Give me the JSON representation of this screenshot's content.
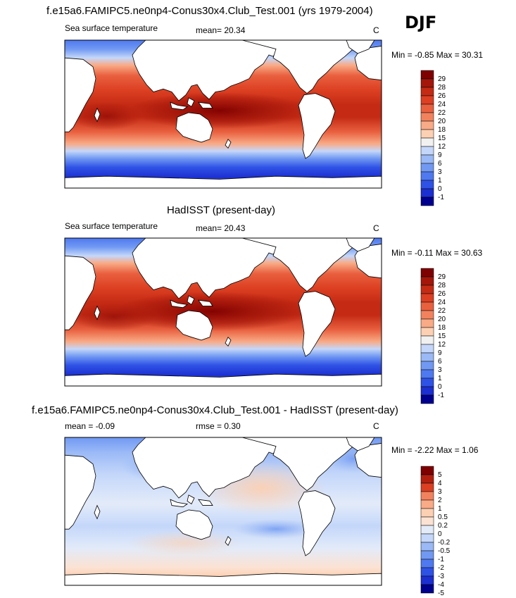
{
  "season": "DJF",
  "colors": {
    "sst": [
      "#00008f",
      "#1c2fd1",
      "#2f52e6",
      "#4f79f0",
      "#7199f3",
      "#9ab9f6",
      "#c4d7fa",
      "#f1f1f1",
      "#fcd0b3",
      "#f9aa86",
      "#f2825d",
      "#e9603f",
      "#dc3f22",
      "#c42a14",
      "#a4160a",
      "#7f0000"
    ],
    "diff": [
      "#00008f",
      "#1c2fd1",
      "#2f52e6",
      "#4f79f0",
      "#7199f3",
      "#9ab9f6",
      "#c4d7fa",
      "#e3ebf9",
      "#fbe2d2",
      "#fcd0b3",
      "#f9aa86",
      "#f2825d",
      "#dc3f22",
      "#b21f0f",
      "#7f0000"
    ]
  },
  "panels": [
    {
      "title": "f.e15a6.FAMIPC5.ne0np4-Conus30x4.Club_Test.001 (yrs 1979-2004)",
      "left_label": "Sea surface temperature",
      "mid_label": "mean=  20.34",
      "units": "C",
      "minmax": "Min =  -0.85 Max =  30.31"
    },
    {
      "title": "HadISST (present-day)",
      "left_label": "Sea surface temperature",
      "mid_label": "mean=  20.43",
      "units": "C",
      "minmax": "Min =  -0.11 Max =  30.63"
    },
    {
      "title": "f.e15a6.FAMIPC5.ne0np4-Conus30x4.Club_Test.001 - HadISST (present-day)",
      "left_label": "mean =  -0.09",
      "mid_label": "rmse =   0.30",
      "units": "C",
      "minmax": "Min =  -2.22 Max =   1.06"
    }
  ],
  "chart_data": [
    {
      "type": "heatmap",
      "title": "f.e15a6.FAMIPC5.ne0np4-Conus30x4.Club_Test.001 (yrs 1979-2004)",
      "variable": "Sea surface temperature",
      "units": "C",
      "mean": 20.34,
      "min": -0.85,
      "max": 30.31,
      "colorbar_levels": [
        "29",
        "28",
        "26",
        "24",
        "22",
        "20",
        "18",
        "15",
        "12",
        "9",
        "6",
        "3",
        "1",
        "0",
        "-1"
      ],
      "projection": "global cylindrical (Pacific-centered)"
    },
    {
      "type": "heatmap",
      "title": "HadISST (present-day)",
      "variable": "Sea surface temperature",
      "units": "C",
      "mean": 20.43,
      "min": -0.11,
      "max": 30.63,
      "colorbar_levels": [
        "29",
        "28",
        "26",
        "24",
        "22",
        "20",
        "18",
        "15",
        "12",
        "9",
        "6",
        "3",
        "1",
        "0",
        "-1"
      ],
      "projection": "global cylindrical (Pacific-centered)"
    },
    {
      "type": "heatmap",
      "title": "f.e15a6.FAMIPC5.ne0np4-Conus30x4.Club_Test.001 - HadISST (present-day)",
      "units": "C",
      "mean": -0.09,
      "rmse": 0.3,
      "min": -2.22,
      "max": 1.06,
      "colorbar_levels": [
        "5",
        "4",
        "3",
        "2",
        "1",
        "0.5",
        "0.2",
        "0",
        "-0.2",
        "-0.5",
        "-1",
        "-2",
        "-3",
        "-4",
        "-5"
      ],
      "projection": "global cylindrical (Pacific-centered)"
    }
  ]
}
